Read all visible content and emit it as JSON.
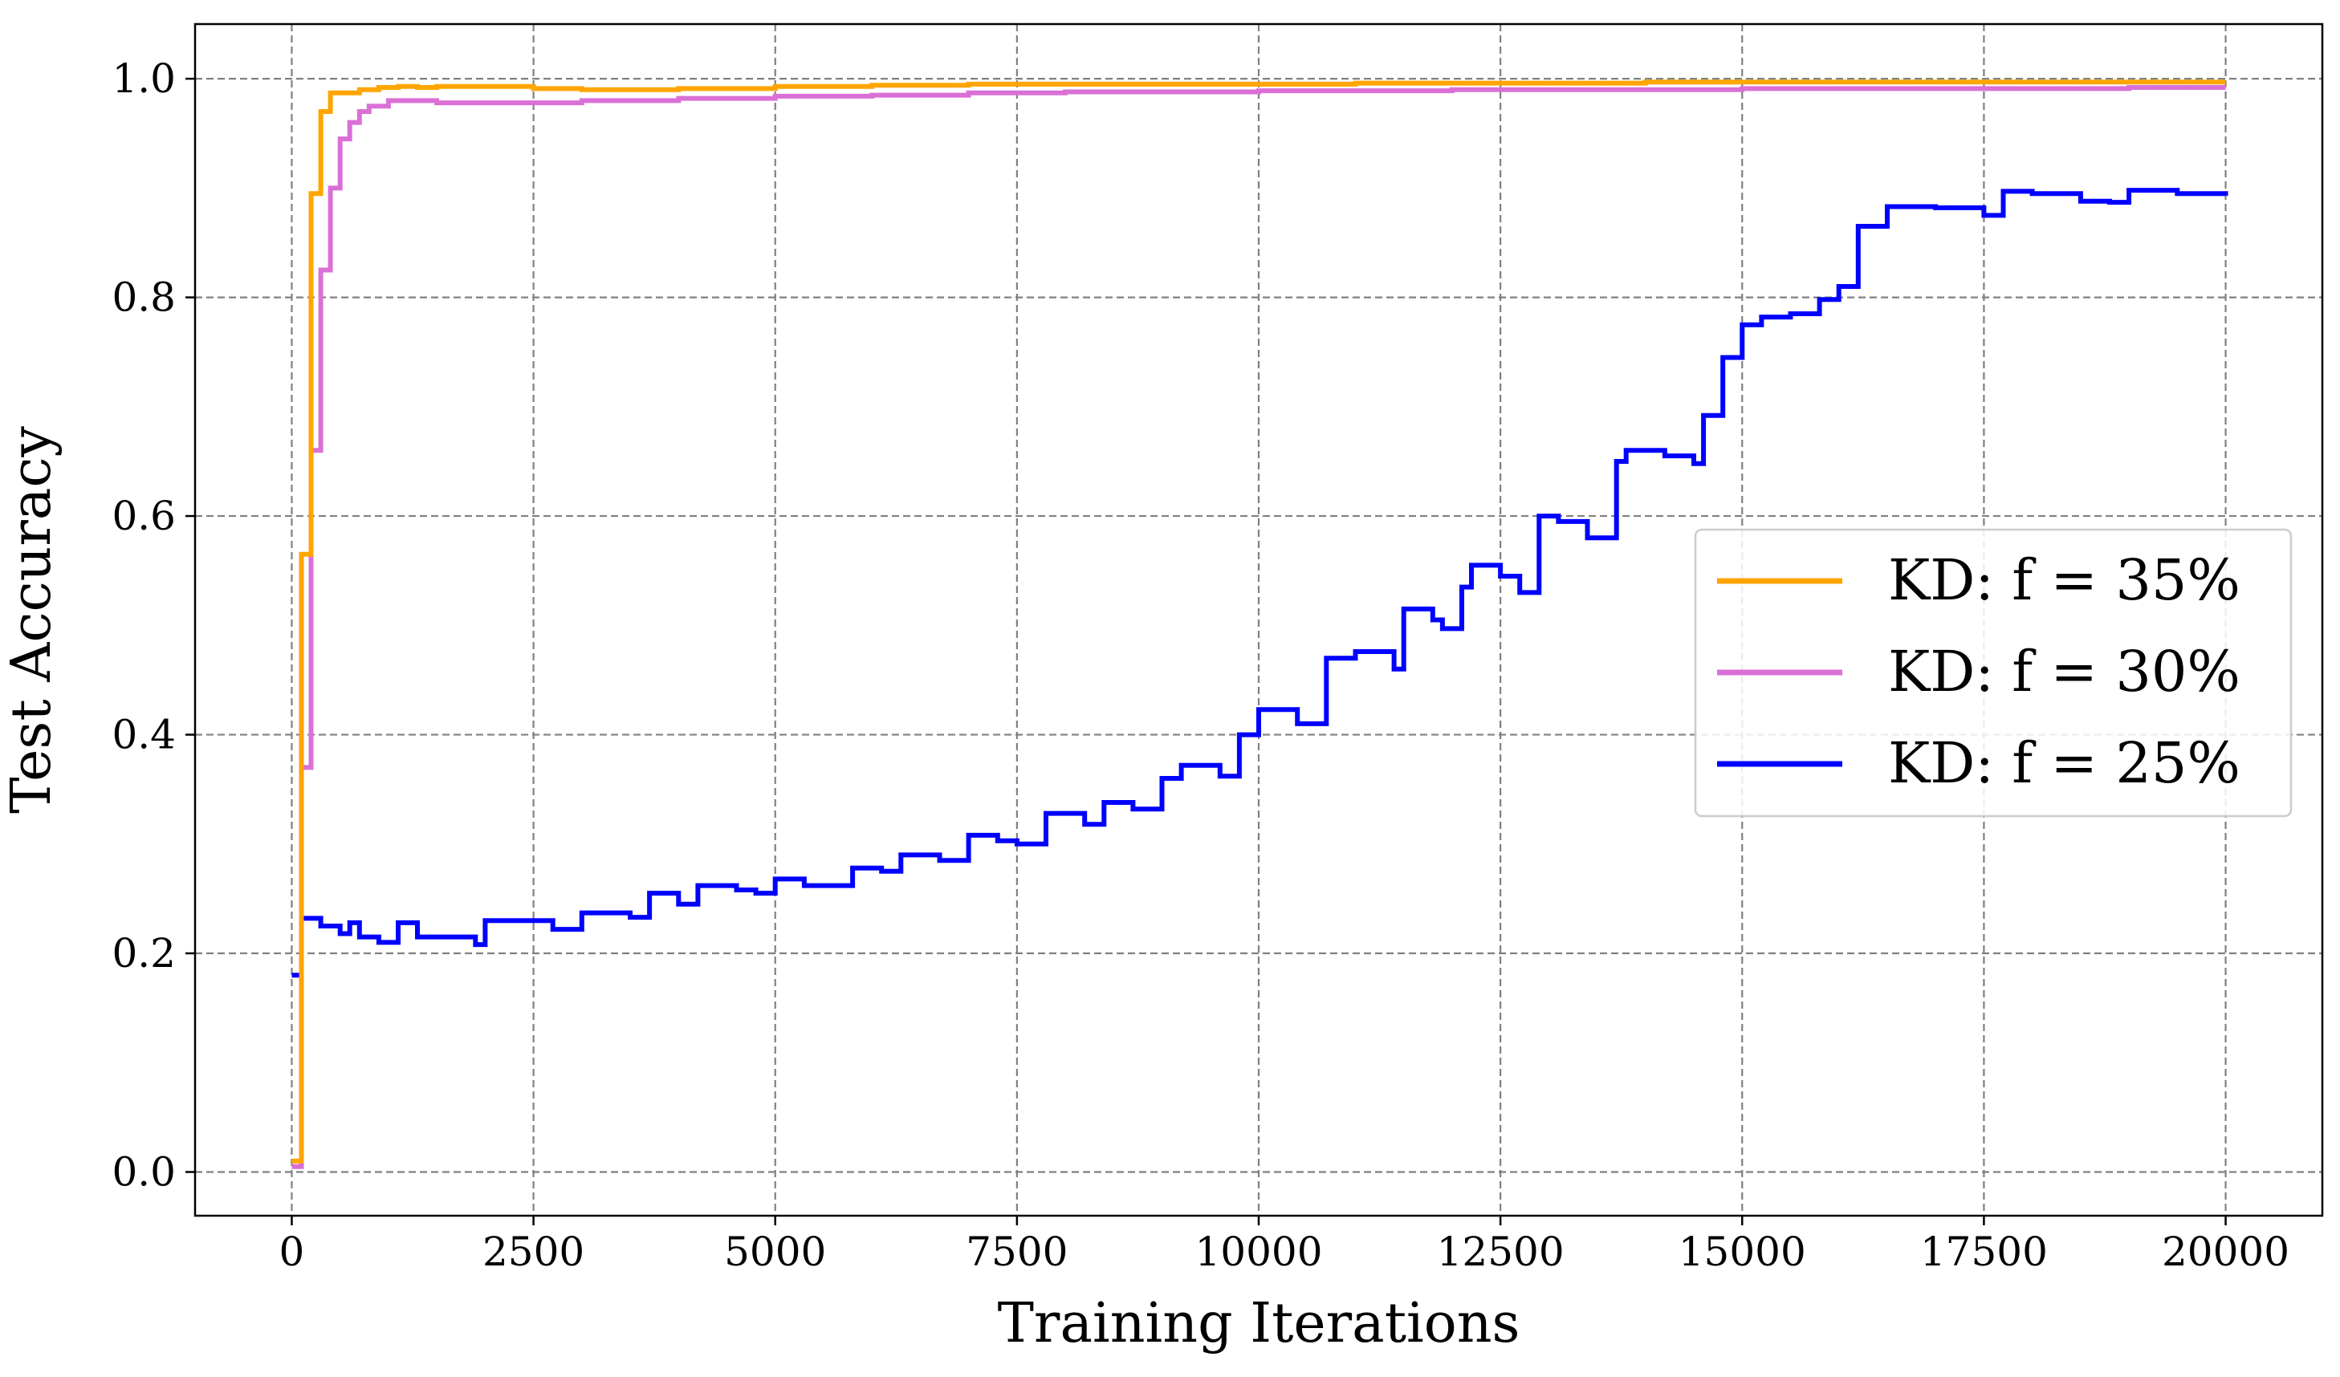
{
  "chart_data": {
    "type": "line",
    "xlabel": "Training Iterations",
    "ylabel": "Test Accuracy",
    "xlim": [
      -1000,
      21000
    ],
    "ylim": [
      -0.04,
      1.05
    ],
    "xticks": [
      0,
      2500,
      5000,
      7500,
      10000,
      12500,
      15000,
      17500,
      20000
    ],
    "yticks": [
      0.0,
      0.2,
      0.4,
      0.6,
      0.8,
      1.0
    ],
    "xtick_labels": [
      "0",
      "2500",
      "5000",
      "7500",
      "10000",
      "12500",
      "15000",
      "17500",
      "20000"
    ],
    "ytick_labels": [
      "0.0",
      "0.2",
      "0.4",
      "0.6",
      "0.8",
      "1.0"
    ],
    "grid": true,
    "legend_position": "center-right",
    "step": true,
    "series": [
      {
        "name": "KD: f = 35%",
        "color": "#FFA500",
        "x": [
          0,
          50,
          100,
          200,
          300,
          400,
          500,
          700,
          900,
          1100,
          1300,
          1500,
          2000,
          2500,
          3000,
          4000,
          5000,
          6000,
          7000,
          8000,
          9000,
          10000,
          11000,
          12000,
          13000,
          14000,
          15000,
          16000,
          17000,
          18000,
          19000,
          20000
        ],
        "y": [
          0.01,
          0.01,
          0.565,
          0.895,
          0.97,
          0.987,
          0.987,
          0.99,
          0.992,
          0.993,
          0.992,
          0.993,
          0.993,
          0.991,
          0.99,
          0.991,
          0.993,
          0.994,
          0.995,
          0.995,
          0.995,
          0.995,
          0.996,
          0.996,
          0.996,
          0.997,
          0.997,
          0.997,
          0.997,
          0.997,
          0.997,
          0.997
        ]
      },
      {
        "name": "KD: f = 30%",
        "color": "#DA70D6",
        "x": [
          0,
          50,
          100,
          200,
          300,
          400,
          500,
          600,
          700,
          800,
          1000,
          1500,
          2000,
          2500,
          3000,
          4000,
          5000,
          6000,
          7000,
          8000,
          9000,
          10000,
          11000,
          12000,
          13000,
          14000,
          15000,
          16000,
          17000,
          18000,
          19000,
          20000
        ],
        "y": [
          0.005,
          0.005,
          0.37,
          0.66,
          0.825,
          0.9,
          0.945,
          0.96,
          0.97,
          0.975,
          0.98,
          0.978,
          0.978,
          0.978,
          0.98,
          0.982,
          0.984,
          0.985,
          0.987,
          0.988,
          0.988,
          0.989,
          0.989,
          0.99,
          0.99,
          0.99,
          0.991,
          0.991,
          0.991,
          0.991,
          0.992,
          0.992
        ]
      },
      {
        "name": "KD: f = 25%",
        "color": "#0000FF",
        "x": [
          0,
          100,
          300,
          500,
          600,
          700,
          900,
          1100,
          1300,
          1900,
          2000,
          2700,
          3000,
          3500,
          3700,
          4000,
          4200,
          4600,
          4800,
          5000,
          5300,
          5600,
          5800,
          6100,
          6300,
          6700,
          7000,
          7300,
          7500,
          7800,
          8200,
          8400,
          8700,
          9000,
          9200,
          9600,
          9800,
          10000,
          10400,
          10700,
          11000,
          11400,
          11500,
          11800,
          11900,
          12100,
          12200,
          12500,
          12700,
          12900,
          13100,
          13400,
          13700,
          13800,
          14000,
          14200,
          14500,
          14600,
          14800,
          15000,
          15200,
          15500,
          15800,
          16000,
          16200,
          16500,
          17000,
          17500,
          17700,
          18000,
          18500,
          18800,
          19000,
          19500,
          20000
        ],
        "y": [
          0.18,
          0.232,
          0.225,
          0.218,
          0.228,
          0.215,
          0.21,
          0.228,
          0.215,
          0.208,
          0.23,
          0.222,
          0.237,
          0.233,
          0.255,
          0.245,
          0.262,
          0.258,
          0.255,
          0.268,
          0.262,
          0.262,
          0.278,
          0.275,
          0.29,
          0.285,
          0.308,
          0.303,
          0.3,
          0.328,
          0.318,
          0.338,
          0.332,
          0.36,
          0.372,
          0.362,
          0.4,
          0.423,
          0.41,
          0.47,
          0.476,
          0.46,
          0.515,
          0.505,
          0.497,
          0.535,
          0.555,
          0.545,
          0.53,
          0.6,
          0.595,
          0.58,
          0.65,
          0.66,
          0.66,
          0.655,
          0.648,
          0.692,
          0.745,
          0.775,
          0.782,
          0.785,
          0.798,
          0.81,
          0.865,
          0.883,
          0.882,
          0.875,
          0.897,
          0.895,
          0.888,
          0.887,
          0.898,
          0.895,
          0.893
        ]
      }
    ]
  }
}
